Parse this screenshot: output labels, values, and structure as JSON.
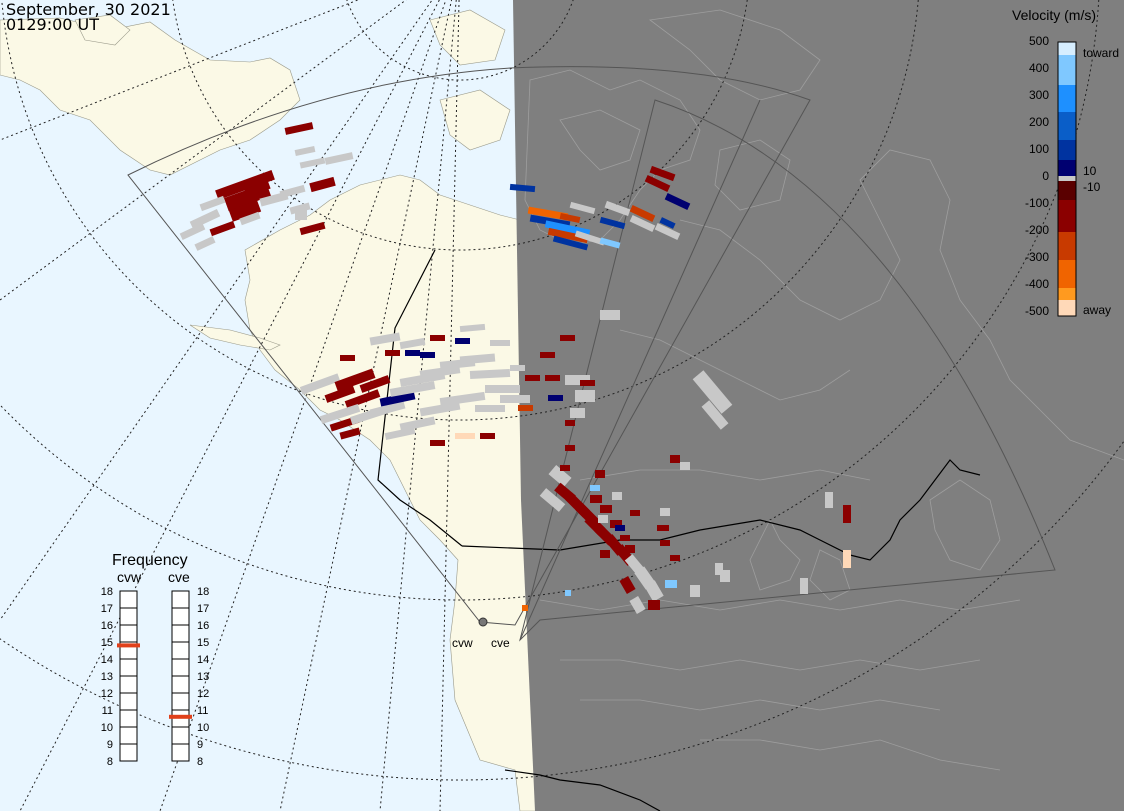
{
  "header": {
    "date": "September, 30 2021",
    "time": "0129:00 UT"
  },
  "legend": {
    "title": "Velocity (m/s)",
    "tick_labels": [
      "500",
      "400",
      "300",
      "200",
      "100",
      "0",
      "-100",
      "-200",
      "-300",
      "-400",
      "-500"
    ],
    "toward_label": "toward",
    "away_label": "away",
    "pos_threshold": "10",
    "neg_threshold": "-10",
    "colors": {
      "toward_500": "#d6eeff",
      "toward_400": "#7fc8ff",
      "toward_300": "#1e90ff",
      "toward_200": "#0a5ec8",
      "toward_100": "#0033a0",
      "toward_10": "#000070",
      "ground_scatter": "#c8c8c8",
      "away_10": "#5a0000",
      "away_100": "#8b0000",
      "away_200": "#c83a00",
      "away_300": "#f06400",
      "away_400": "#ff9a1f",
      "away_500": "#ffd9b8"
    }
  },
  "frequency": {
    "title": "Frequency",
    "radars": [
      {
        "name": "cvw",
        "frequency_mhz": 14.8
      },
      {
        "name": "cve",
        "frequency_mhz": 10.6
      }
    ],
    "scale_labels": [
      "18",
      "17",
      "16",
      "15",
      "14",
      "13",
      "12",
      "11",
      "10",
      "9",
      "8"
    ],
    "marker_color": "#e0401a"
  },
  "radar_sites": [
    {
      "name": "cvw",
      "label": "cvw"
    },
    {
      "name": "cve",
      "label": "cve"
    }
  ],
  "map_colors": {
    "ocean_day": "#e9f6ff",
    "land_day": "#fbf9e6",
    "night": "#7f7f7f",
    "night_lines": "#a2a2a2",
    "borders": "#000000",
    "fov": "#555555"
  }
}
